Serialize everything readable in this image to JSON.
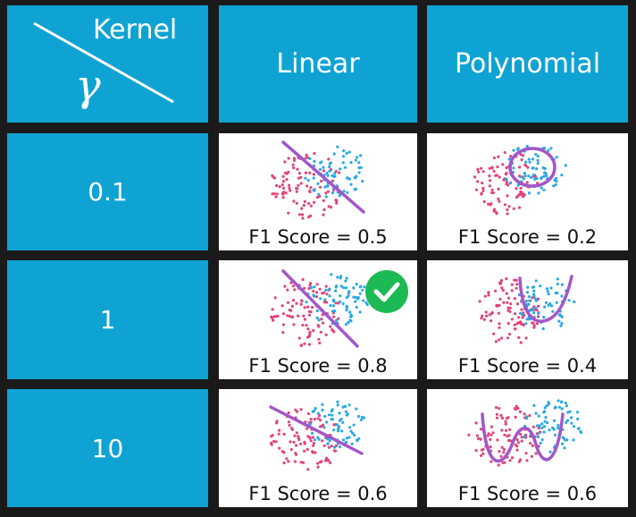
{
  "header": {
    "corner_top": "Kernel",
    "corner_bottom": "γ",
    "columns": [
      "Linear",
      "Polynomial"
    ]
  },
  "rows": [
    {
      "gamma": "0.1",
      "linear_score": "F1 Score = 0.5",
      "poly_score": "F1 Score = 0.2"
    },
    {
      "gamma": "1",
      "linear_score": "F1 Score = 0.8",
      "poly_score": "F1 Score = 0.4"
    },
    {
      "gamma": "10",
      "linear_score": "F1 Score = 0.6",
      "poly_score": "F1 Score = 0.6"
    }
  ],
  "best": {
    "row": 1,
    "column": "Linear",
    "icon": "check-circle-icon",
    "color": "#1db954"
  },
  "colors": {
    "header_bg": "#0fa3d4",
    "class_a": "#e0457b",
    "class_b": "#2aa9e0",
    "boundary": "#a257c9"
  }
}
